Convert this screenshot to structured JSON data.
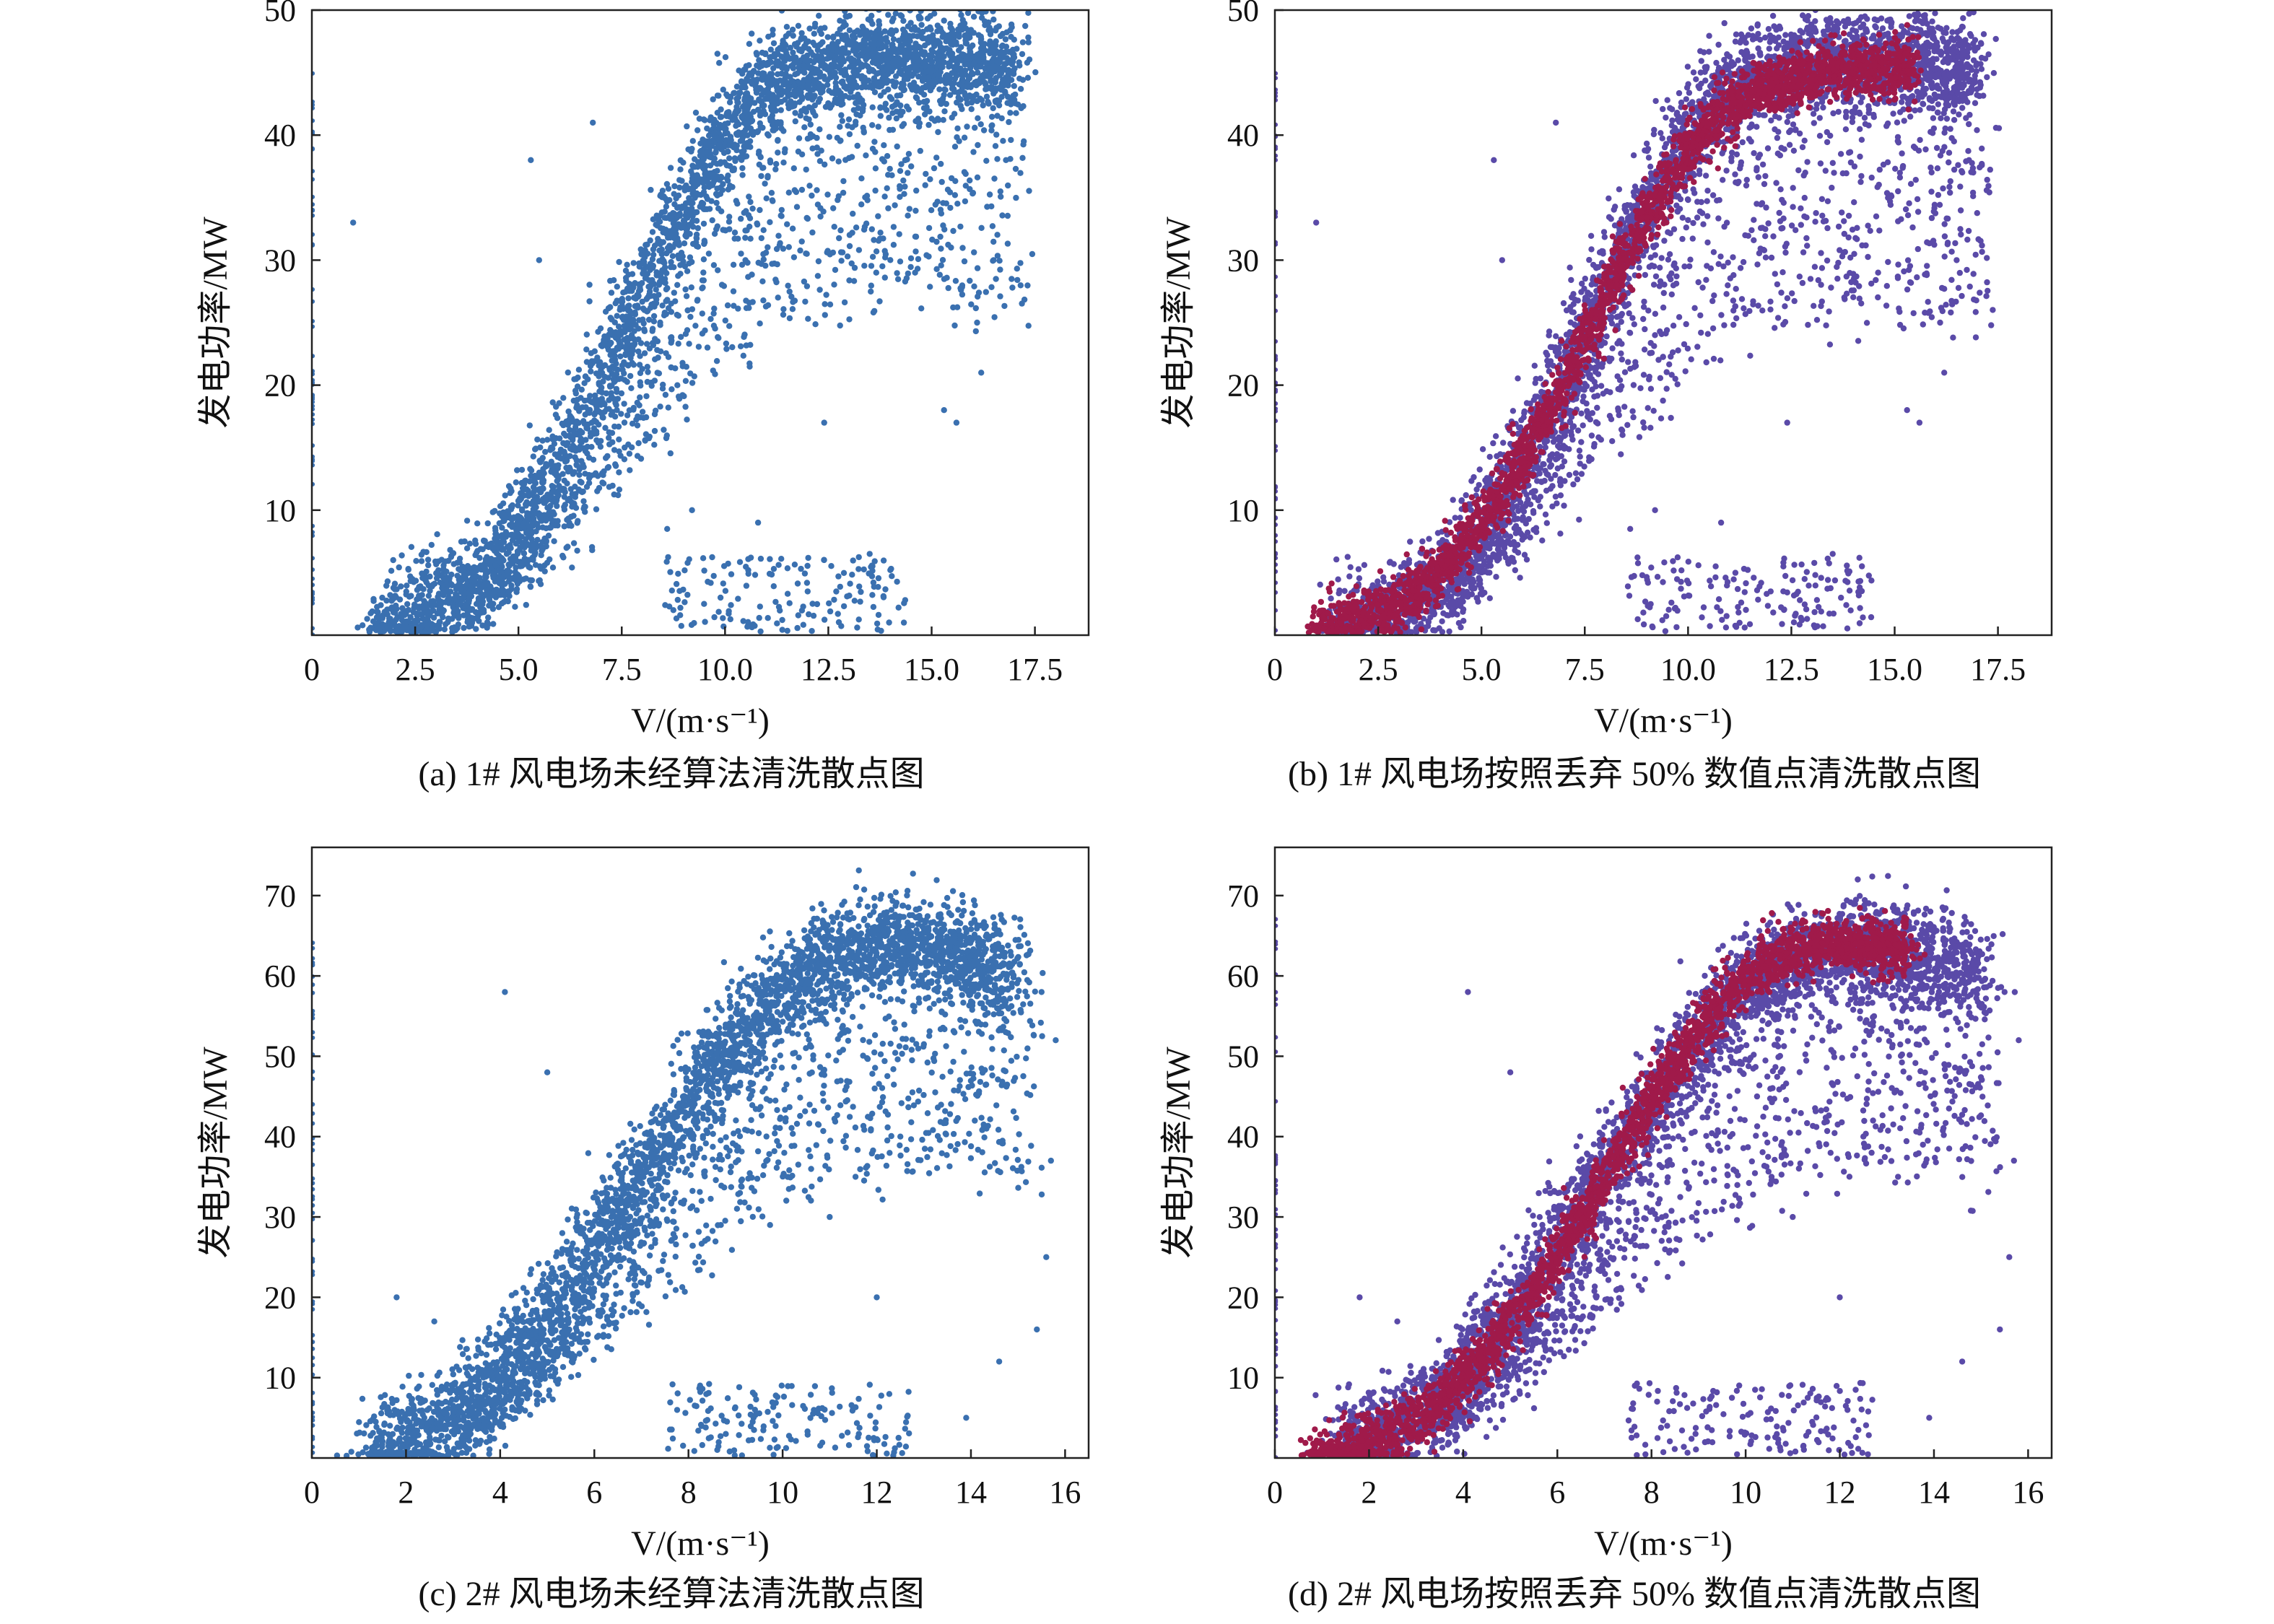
{
  "chart_data": [
    {
      "id": "a",
      "type": "scatter",
      "caption": "(a) 1# 风电场未经算法清洗散点图",
      "xlabel": "V/(m·s⁻¹)",
      "ylabel": "发电功率/MW",
      "xlim": [
        0,
        18.8
      ],
      "ylim": [
        0,
        50
      ],
      "x_ticks": [
        0,
        2.5,
        5.0,
        7.5,
        10.0,
        12.5,
        15.0,
        17.5
      ],
      "x_tick_labels": [
        "0",
        "2.5",
        "5.0",
        "7.5",
        "10.0",
        "12.5",
        "15.0",
        "17.5"
      ],
      "y_ticks": [
        10,
        20,
        30,
        40,
        50
      ],
      "y_tick_labels": [
        "10",
        "20",
        "30",
        "40",
        "50"
      ],
      "grid": false,
      "series": [
        {
          "color": "#3a70b0",
          "core_curve": {
            "x": [
              1.5,
              2.5,
              3.5,
              4.5,
              5.5,
              6.5,
              7.5,
              8.5,
              9.5,
              10.5,
              11.5,
              12.5,
              13.5,
              14.5,
              15.5,
              16.5,
              17.0
            ],
            "y": [
              0.5,
              1.5,
              3.0,
              6.0,
              11.0,
              17.0,
              24.0,
              31.0,
              37.0,
              42.0,
              44.5,
              45.5,
              46.0,
              46.0,
              46.0,
              45.5,
              45.0
            ]
          },
          "outlier_points": [
            {
              "x": 1.0,
              "y": 33
            },
            {
              "x": 5.3,
              "y": 38
            },
            {
              "x": 5.5,
              "y": 30
            },
            {
              "x": 6.8,
              "y": 41
            },
            {
              "x": 12.4,
              "y": 17
            },
            {
              "x": 14.6,
              "y": 29
            },
            {
              "x": 15.3,
              "y": 18
            },
            {
              "x": 15.6,
              "y": 17
            },
            {
              "x": 16.2,
              "y": 21
            },
            {
              "x": 16.1,
              "y": 25
            },
            {
              "x": 16.5,
              "y": 30
            },
            {
              "x": 16.8,
              "y": 38
            },
            {
              "x": 13.5,
              "y": 6.5
            },
            {
              "x": 12.0,
              "y": 3.5
            },
            {
              "x": 10.8,
              "y": 9
            },
            {
              "x": 8.6,
              "y": 8.5
            },
            {
              "x": 9.2,
              "y": 10
            }
          ]
        }
      ]
    },
    {
      "id": "b",
      "type": "scatter",
      "caption": "(b) 1# 风电场按照丢弃 50% 数值点清洗散点图",
      "xlabel": "V/(m·s⁻¹)",
      "ylabel": "发电功率/MW",
      "xlim": [
        0,
        18.8
      ],
      "ylim": [
        0,
        50
      ],
      "x_ticks": [
        0,
        2.5,
        5.0,
        7.5,
        10.0,
        12.5,
        15.0,
        17.5
      ],
      "x_tick_labels": [
        "0",
        "2.5",
        "5.0",
        "7.5",
        "10.0",
        "12.5",
        "15.0",
        "17.5"
      ],
      "y_ticks": [
        10,
        20,
        30,
        40,
        50
      ],
      "y_tick_labels": [
        "10",
        "20",
        "30",
        "40",
        "50"
      ],
      "grid": false,
      "series": [
        {
          "color": "#5a4aa8",
          "core_curve": {
            "x": [
              1.5,
              2.5,
              3.5,
              4.5,
              5.5,
              6.5,
              7.5,
              8.5,
              9.5,
              10.5,
              11.5,
              12.5,
              13.5,
              14.5,
              15.5,
              16.5,
              17.0
            ],
            "y": [
              0.5,
              1.5,
              3.0,
              6.0,
              11.0,
              17.0,
              24.0,
              31.0,
              37.0,
              42.0,
              44.5,
              45.5,
              46.0,
              46.0,
              46.0,
              45.5,
              45.0
            ]
          },
          "outlier_points": [
            {
              "x": 1.0,
              "y": 33
            },
            {
              "x": 5.3,
              "y": 38
            },
            {
              "x": 5.5,
              "y": 30
            },
            {
              "x": 6.8,
              "y": 41
            },
            {
              "x": 12.4,
              "y": 17
            },
            {
              "x": 14.6,
              "y": 29
            },
            {
              "x": 15.3,
              "y": 18
            },
            {
              "x": 15.6,
              "y": 17
            },
            {
              "x": 16.2,
              "y": 21
            },
            {
              "x": 16.1,
              "y": 25
            },
            {
              "x": 16.5,
              "y": 30
            },
            {
              "x": 16.8,
              "y": 38
            },
            {
              "x": 13.5,
              "y": 6.5
            },
            {
              "x": 12.0,
              "y": 3.5
            },
            {
              "x": 10.8,
              "y": 9
            },
            {
              "x": 8.6,
              "y": 8.5
            },
            {
              "x": 9.2,
              "y": 10
            }
          ]
        },
        {
          "color": "#a01a4a",
          "core_curve": {
            "x": [
              1.0,
              2.0,
              3.0,
              4.0,
              5.0,
              6.0,
              7.0,
              8.0,
              9.0,
              10.0,
              11.0,
              12.0,
              13.0,
              14.0,
              15.0,
              15.5
            ],
            "y": [
              0.3,
              1.0,
              2.5,
              5.0,
              9.0,
              14.0,
              20.0,
              27.0,
              33.5,
              39.0,
              42.5,
              44.0,
              44.8,
              45.2,
              45.5,
              45.5
            ]
          },
          "outlier_points": []
        }
      ]
    },
    {
      "id": "c",
      "type": "scatter",
      "caption": "(c) 2# 风电场未经算法清洗散点图",
      "xlabel": "V/(m·s⁻¹)",
      "ylabel": "发电功率/MW",
      "xlim": [
        0,
        16.5
      ],
      "ylim": [
        0,
        76
      ],
      "x_ticks": [
        0,
        2,
        4,
        6,
        8,
        10,
        12,
        14,
        16
      ],
      "x_tick_labels": [
        "0",
        "2",
        "4",
        "6",
        "8",
        "10",
        "12",
        "14",
        "16"
      ],
      "y_ticks": [
        10,
        20,
        30,
        40,
        50,
        60,
        70
      ],
      "y_tick_labels": [
        "10",
        "20",
        "30",
        "40",
        "50",
        "60",
        "70"
      ],
      "grid": false,
      "series": [
        {
          "color": "#3a70b0",
          "core_curve": {
            "x": [
              1.2,
              2.0,
              3.0,
              4.0,
              5.0,
              6.0,
              7.0,
              8.0,
              9.0,
              10.0,
              11.0,
              12.0,
              13.0,
              14.0,
              15.0
            ],
            "y": [
              0.5,
              2.0,
              5.0,
              10.0,
              17.0,
              26.0,
              35.0,
              44.0,
              52.0,
              58.0,
              62.0,
              63.5,
              63.5,
              62.0,
              60.0
            ]
          },
          "outlier_points": [
            {
              "x": 1.8,
              "y": 20
            },
            {
              "x": 2.6,
              "y": 17
            },
            {
              "x": 4.1,
              "y": 58
            },
            {
              "x": 5.0,
              "y": 48
            },
            {
              "x": 15.5,
              "y": 58
            },
            {
              "x": 15.8,
              "y": 52
            },
            {
              "x": 15.7,
              "y": 37
            },
            {
              "x": 15.6,
              "y": 25
            },
            {
              "x": 15.4,
              "y": 16
            },
            {
              "x": 14.6,
              "y": 12
            },
            {
              "x": 13.9,
              "y": 5
            },
            {
              "x": 12.5,
              "y": 40
            },
            {
              "x": 11.0,
              "y": 30
            },
            {
              "x": 12.0,
              "y": 20
            }
          ]
        }
      ]
    },
    {
      "id": "d",
      "type": "scatter",
      "caption": "(d) 2# 风电场按照丢弃 50% 数值点清洗散点图",
      "xlabel": "V/(m·s⁻¹)",
      "ylabel": "发电功率/MW",
      "xlim": [
        0,
        16.5
      ],
      "ylim": [
        0,
        76
      ],
      "x_ticks": [
        0,
        2,
        4,
        6,
        8,
        10,
        12,
        14,
        16
      ],
      "x_tick_labels": [
        "0",
        "2",
        "4",
        "6",
        "8",
        "10",
        "12",
        "14",
        "16"
      ],
      "y_ticks": [
        10,
        20,
        30,
        40,
        50,
        60,
        70
      ],
      "y_tick_labels": [
        "10",
        "20",
        "30",
        "40",
        "50",
        "60",
        "70"
      ],
      "grid": false,
      "series": [
        {
          "color": "#5a4aa8",
          "core_curve": {
            "x": [
              1.2,
              2.0,
              3.0,
              4.0,
              5.0,
              6.0,
              7.0,
              8.0,
              9.0,
              10.0,
              11.0,
              12.0,
              13.0,
              14.0,
              15.0
            ],
            "y": [
              0.5,
              2.0,
              5.0,
              10.0,
              17.0,
              26.0,
              35.0,
              44.0,
              52.0,
              58.0,
              62.0,
              63.5,
              63.5,
              62.0,
              60.0
            ]
          },
          "outlier_points": [
            {
              "x": 1.8,
              "y": 20
            },
            {
              "x": 2.6,
              "y": 17
            },
            {
              "x": 4.1,
              "y": 58
            },
            {
              "x": 5.0,
              "y": 48
            },
            {
              "x": 15.5,
              "y": 58
            },
            {
              "x": 15.8,
              "y": 52
            },
            {
              "x": 15.7,
              "y": 37
            },
            {
              "x": 15.6,
              "y": 25
            },
            {
              "x": 15.4,
              "y": 16
            },
            {
              "x": 14.6,
              "y": 12
            },
            {
              "x": 13.9,
              "y": 5
            },
            {
              "x": 12.5,
              "y": 40
            },
            {
              "x": 11.0,
              "y": 30
            },
            {
              "x": 12.0,
              "y": 20
            }
          ]
        },
        {
          "color": "#a01a4a",
          "core_curve": {
            "x": [
              0.8,
              1.5,
              2.5,
              3.5,
              4.5,
              5.5,
              6.5,
              7.5,
              8.5,
              9.5,
              10.5,
              11.5,
              12.5,
              13.5
            ],
            "y": [
              0.3,
              1.0,
              3.0,
              7.0,
              13.0,
              21.0,
              30.0,
              40.0,
              49.0,
              57.0,
              62.0,
              64.0,
              64.0,
              63.0
            ]
          },
          "outlier_points": []
        }
      ]
    }
  ]
}
